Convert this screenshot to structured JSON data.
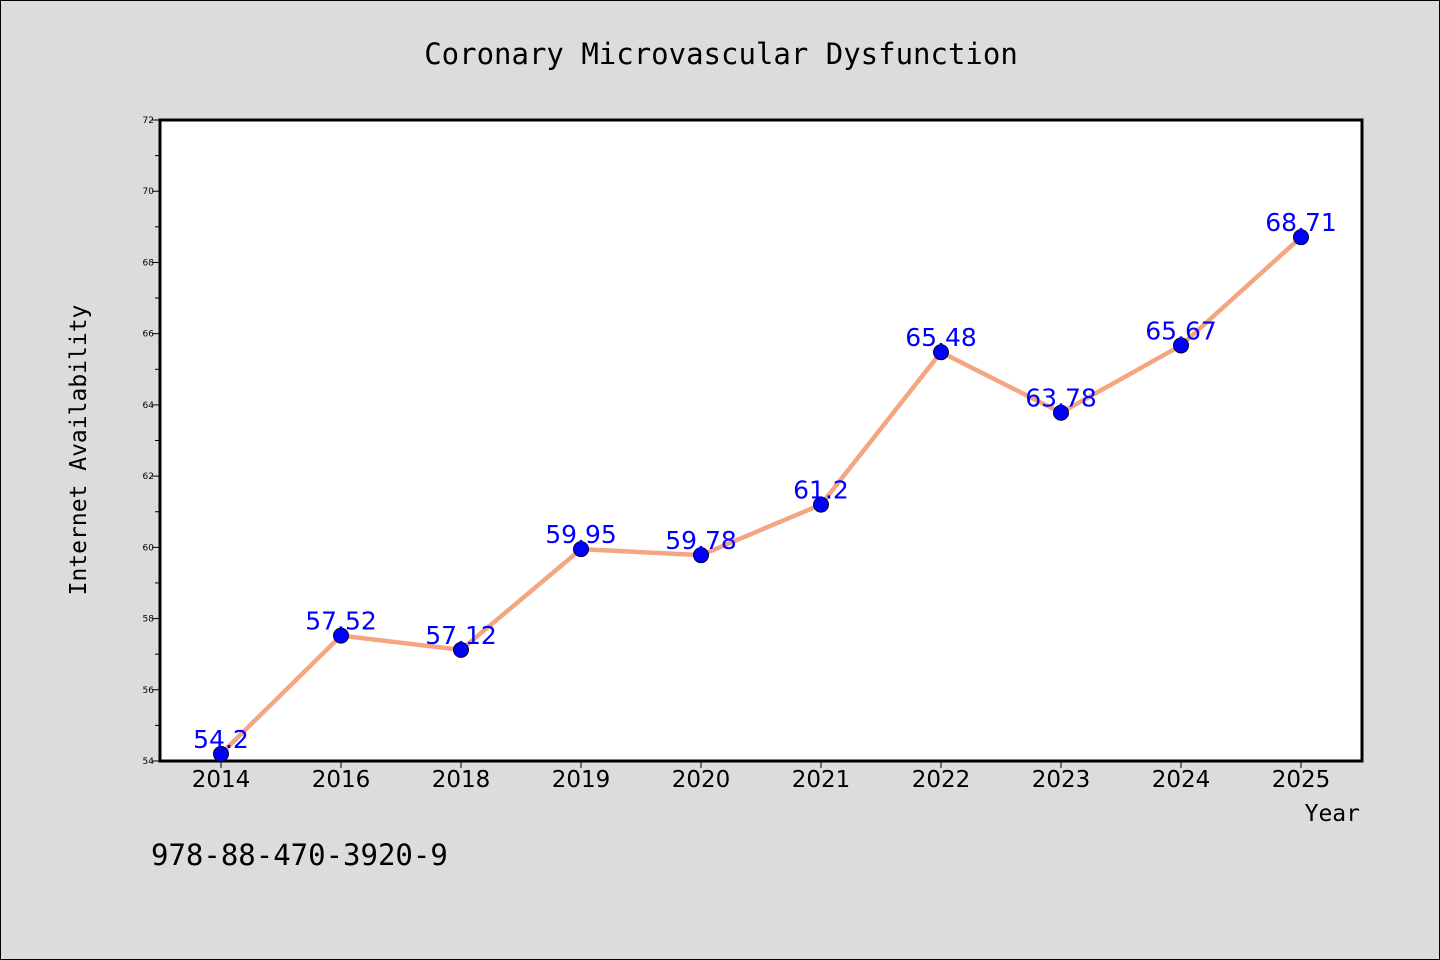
{
  "chart_data": {
    "type": "line",
    "title": "Coronary Microvascular Dysfunction",
    "xlabel": "Year",
    "ylabel": "Internet Availability",
    "categories": [
      "2014",
      "2016",
      "2018",
      "2019",
      "2020",
      "2021",
      "2022",
      "2023",
      "2024",
      "2025"
    ],
    "series": [
      {
        "values": [
          54.2,
          57.52,
          57.12,
          59.95,
          59.78,
          61.2,
          65.48,
          63.78,
          65.67,
          68.71
        ]
      }
    ],
    "data_labels": [
      "54.2",
      "57.52",
      "57.12",
      "59.95",
      "59.78",
      "61.2",
      "65.48",
      "63.78",
      "65.67",
      "68.71"
    ],
    "ylim": [
      54,
      72
    ],
    "y_ticks": [
      "54",
      "56",
      "58",
      "60",
      "62",
      "64",
      "66",
      "68",
      "70",
      "72"
    ],
    "grid": false,
    "legend": "none",
    "colors": {
      "line": "#f4a582",
      "marker": "#0000ff",
      "label": "#0000ff",
      "background": "#dcdcdc",
      "plot": "#ffffff"
    }
  },
  "footnote": "978-88-470-3920-9"
}
